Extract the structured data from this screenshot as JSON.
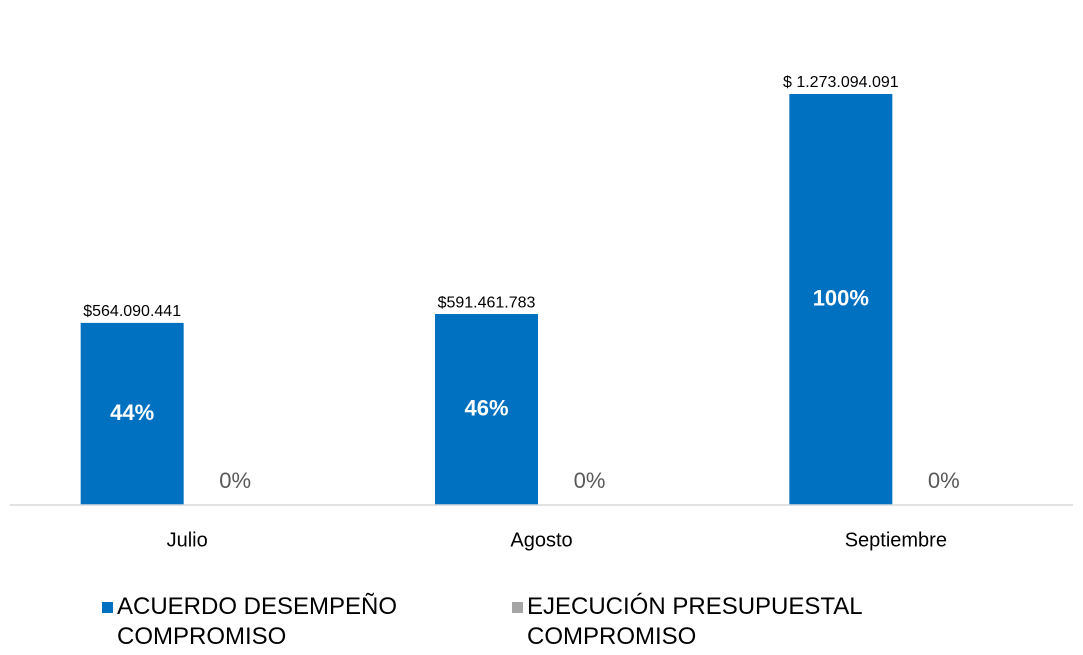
{
  "chart_data": {
    "type": "bar",
    "categories": [
      "Julio",
      "Agosto",
      "Septiembre"
    ],
    "series": [
      {
        "name": "ACUERDO DESEMPEÑO COMPROMISO",
        "color": "#0070c0",
        "values": [
          564090441,
          591461783,
          1273094091
        ],
        "value_labels": [
          "$564.090.441",
          "$591.461.783",
          "$ 1.273.094.091"
        ],
        "inner_labels": [
          "44%",
          "46%",
          "100%"
        ]
      },
      {
        "name": "EJECUCIÓN PRESUPUESTAL COMPROMISO",
        "color": "#a5a5a5",
        "values": [
          0,
          0,
          0
        ],
        "value_labels": [
          "0%",
          "0%",
          "0%"
        ]
      }
    ],
    "ylim": [
      0,
      1400000000
    ],
    "legend": "bottom"
  }
}
